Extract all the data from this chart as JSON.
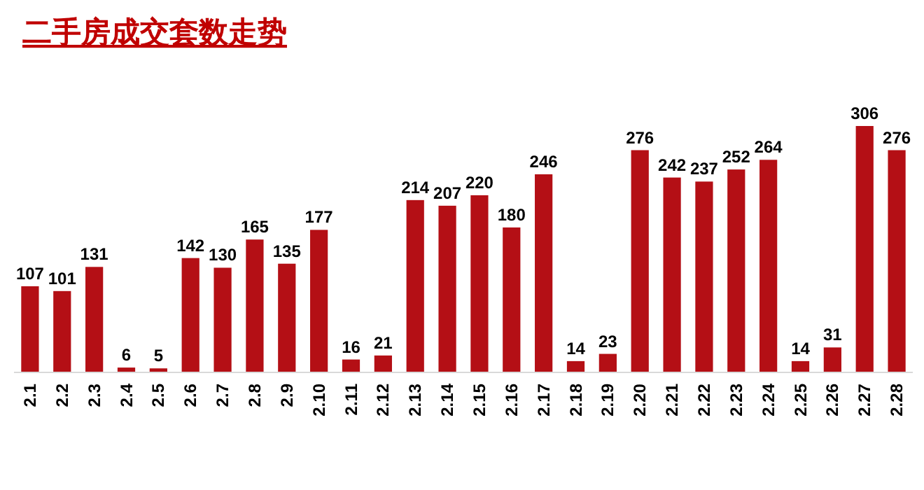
{
  "chart_data": {
    "type": "bar",
    "title": "二手房成交套数走势",
    "categories": [
      "2.1",
      "2.2",
      "2.3",
      "2.4",
      "2.5",
      "2.6",
      "2.7",
      "2.8",
      "2.9",
      "2.10",
      "2.11",
      "2.12",
      "2.13",
      "2.14",
      "2.15",
      "2.16",
      "2.17",
      "2.18",
      "2.19",
      "2.20",
      "2.21",
      "2.22",
      "2.23",
      "2.24",
      "2.25",
      "2.26",
      "2.27",
      "2.28"
    ],
    "values": [
      107,
      101,
      131,
      6,
      5,
      142,
      130,
      165,
      135,
      177,
      16,
      21,
      214,
      207,
      220,
      180,
      246,
      14,
      23,
      276,
      242,
      237,
      252,
      264,
      14,
      31,
      306,
      276
    ],
    "color": "#b40f15",
    "data_labels": true
  }
}
